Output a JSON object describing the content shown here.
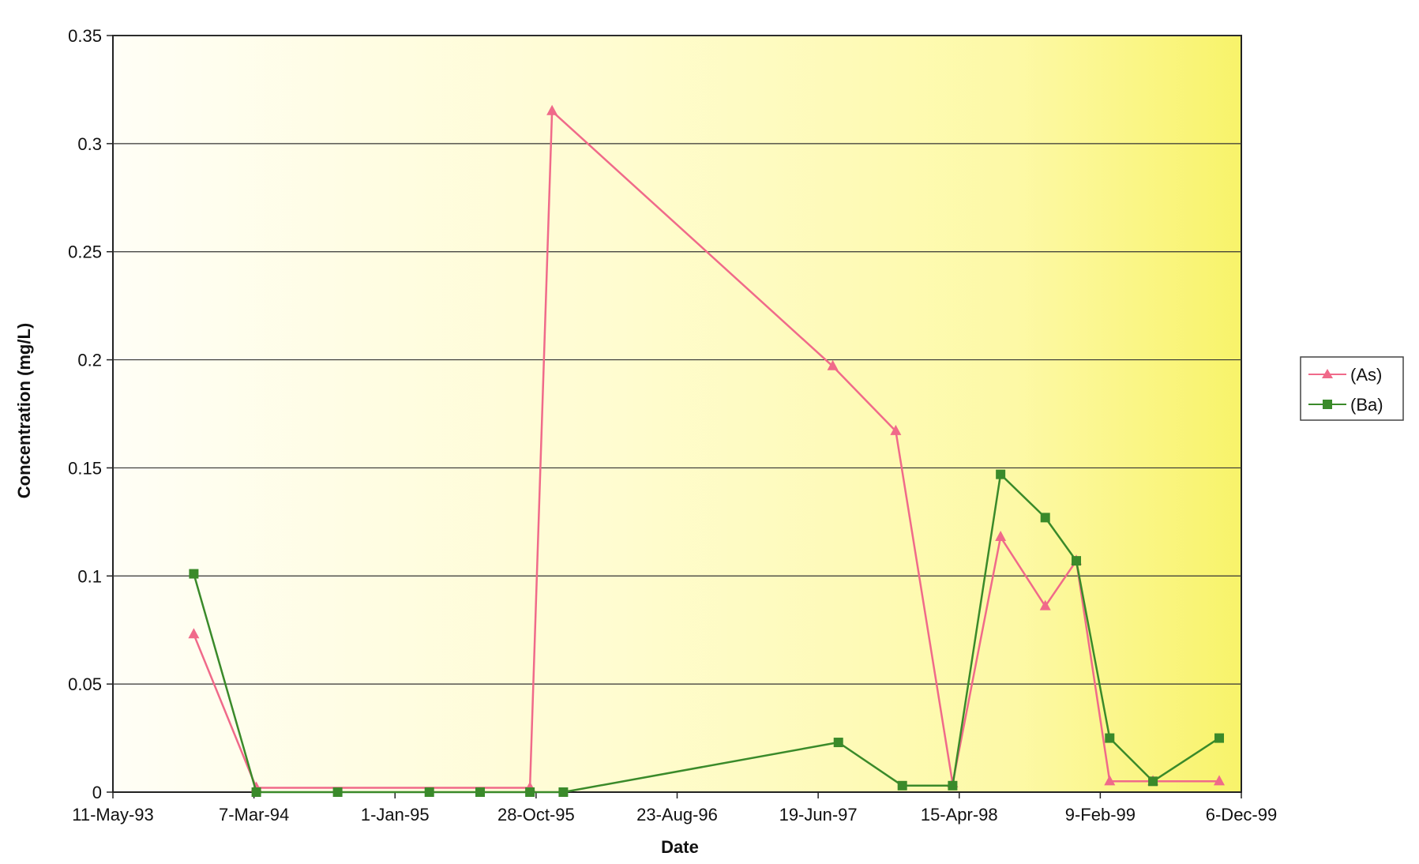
{
  "chart_data": {
    "type": "line",
    "title": "",
    "xlabel": "Date",
    "ylabel": "Concentration (mg/L)",
    "x_tick_labels": [
      "11-May-93",
      "7-Mar-94",
      "1-Jan-95",
      "28-Oct-95",
      "23-Aug-96",
      "19-Jun-97",
      "15-Apr-98",
      "9-Feb-99",
      "6-Dec-99"
    ],
    "y_tick_labels": [
      "0",
      "0.05",
      "0.1",
      "0.15",
      "0.2",
      "0.25",
      "0.3",
      "0.35"
    ],
    "y_ticks": [
      0,
      0.05,
      0.1,
      0.15,
      0.2,
      0.25,
      0.3,
      0.35
    ],
    "ylim": [
      0,
      0.35
    ],
    "xlim": [
      "1993-05-11",
      "1999-12-06"
    ],
    "grid": true,
    "legend_position": "right",
    "background": "yellow gradient",
    "series": [
      {
        "name": "(As)",
        "color": "#f06a8a",
        "marker": "triangle",
        "points": [
          {
            "x": "1993-10-30",
            "y": 0.073
          },
          {
            "x": "1994-03-12",
            "y": 0.002
          },
          {
            "x": "1995-10-15",
            "y": 0.002
          },
          {
            "x": "1995-12-01",
            "y": 0.315
          },
          {
            "x": "1997-07-20",
            "y": 0.197
          },
          {
            "x": "1997-12-01",
            "y": 0.167
          },
          {
            "x": "1998-04-01",
            "y": 0.004
          },
          {
            "x": "1998-07-12",
            "y": 0.118
          },
          {
            "x": "1998-10-15",
            "y": 0.086
          },
          {
            "x": "1998-12-20",
            "y": 0.107
          },
          {
            "x": "1999-03-01",
            "y": 0.005
          },
          {
            "x": "1999-06-01",
            "y": 0.005
          },
          {
            "x": "1999-10-20",
            "y": 0.005
          }
        ]
      },
      {
        "name": "(Ba)",
        "color": "#3a8a2a",
        "marker": "square",
        "points": [
          {
            "x": "1993-10-30",
            "y": 0.101
          },
          {
            "x": "1994-03-12",
            "y": 0.0
          },
          {
            "x": "1994-09-01",
            "y": 0.0
          },
          {
            "x": "1995-03-15",
            "y": 0.0
          },
          {
            "x": "1995-07-01",
            "y": 0.0
          },
          {
            "x": "1995-10-15",
            "y": 0.0
          },
          {
            "x": "1995-12-25",
            "y": 0.0
          },
          {
            "x": "1997-08-01",
            "y": 0.023
          },
          {
            "x": "1997-12-15",
            "y": 0.003
          },
          {
            "x": "1998-04-01",
            "y": 0.003
          },
          {
            "x": "1998-07-12",
            "y": 0.147
          },
          {
            "x": "1998-10-15",
            "y": 0.127
          },
          {
            "x": "1998-12-20",
            "y": 0.107
          },
          {
            "x": "1999-03-01",
            "y": 0.025
          },
          {
            "x": "1999-06-01",
            "y": 0.005
          },
          {
            "x": "1999-10-20",
            "y": 0.025
          }
        ]
      }
    ]
  }
}
